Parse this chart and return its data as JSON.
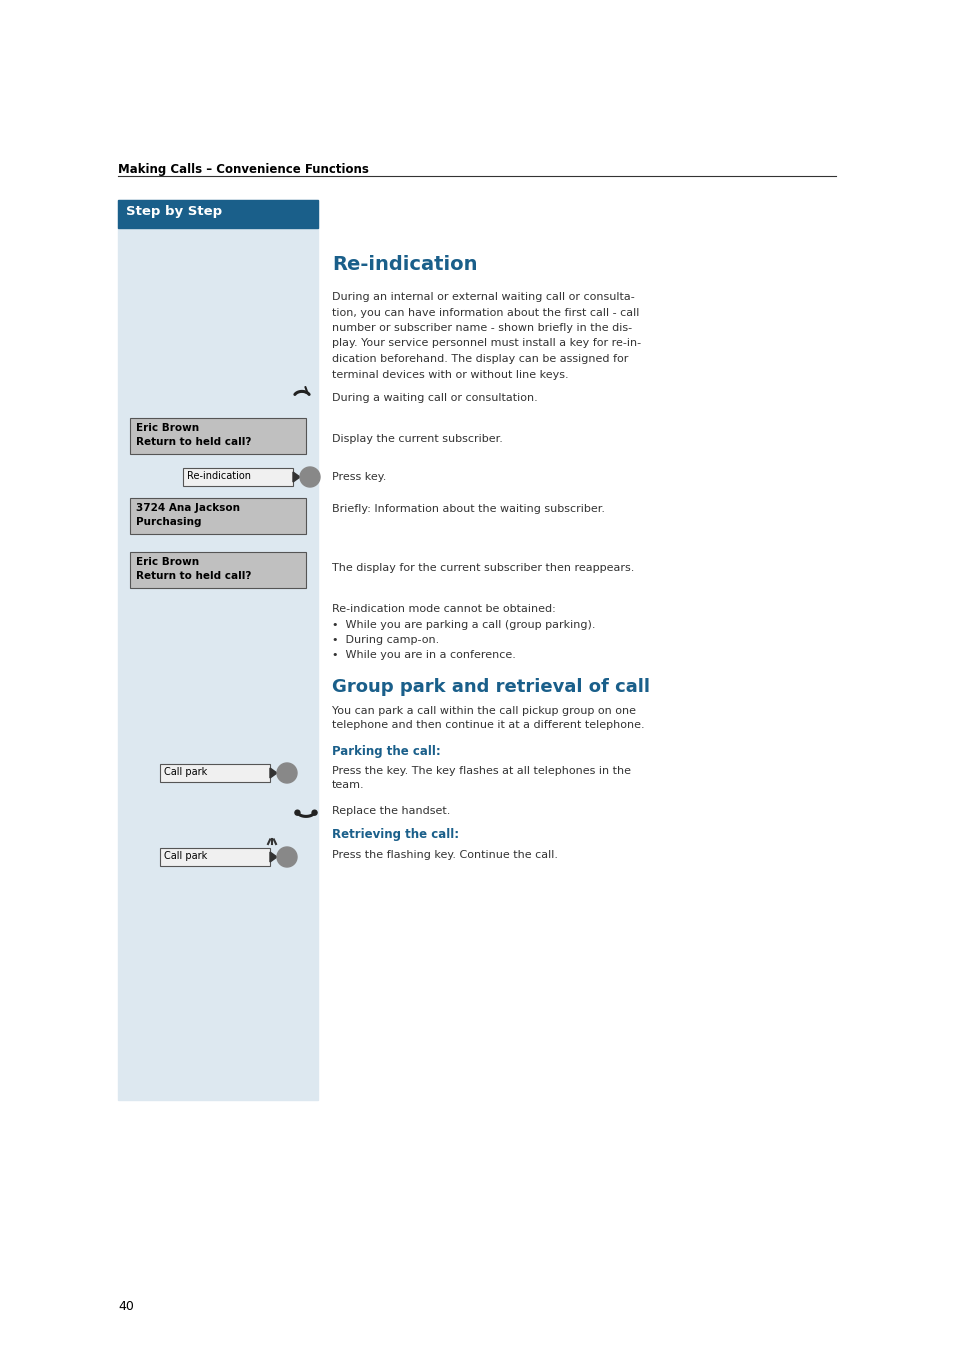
{
  "page_bg": "#ffffff",
  "left_panel_bg": "#dde8f0",
  "header_bg": "#1a5f8a",
  "header_text": "Step by Step",
  "header_text_color": "#ffffff",
  "section_title_color": "#1a5f8a",
  "header_label": "Making Calls – Convenience Functions",
  "page_number": "40",
  "re_indication_title": "Re-indication",
  "body_lines": [
    "During an internal or external waiting call or consulta-",
    "tion, you can have information about the first call - call",
    "number or subscriber name - shown briefly in the dis-",
    "play. Your service personnel must install a key for re-in-",
    "dication beforehand. The display can be assigned for",
    "terminal devices with or without line keys."
  ],
  "step1_right": "During a waiting call or consultation.",
  "display1_line1": "Eric Brown",
  "display1_line2": "Return to held call?",
  "step2_right": "Display the current subscriber.",
  "key_label1": "Re-indication",
  "step3_right": "Press key.",
  "display2_line1": "3724 Ana Jackson",
  "display2_line2": "Purchasing",
  "step4_right": "Briefly: Information about the waiting subscriber.",
  "display3_line1": "Eric Brown",
  "display3_line2": "Return to held call?",
  "step5_right": "The display for the current subscriber then reappears.",
  "note_line0": "Re-indication mode cannot be obtained:",
  "note_line1": "•  While you are parking a call (group parking).",
  "note_line2": "•  During camp-on.",
  "note_line3": "•  While you are in a conference.",
  "group_park_title": "Group park and retrieval of call",
  "group_body1": "You can park a call within the call pickup group on one",
  "group_body2": "telephone and then continue it at a different telephone.",
  "parking_title": "Parking the call:",
  "key_label2": "Call park",
  "parking_step1a": "Press the key. The key flashes at all telephones in the",
  "parking_step1b": "team.",
  "parking_step2": "Replace the handset.",
  "retrieving_title": "Retrieving the call:",
  "key_label3": "Call park",
  "retrieving_step1": "Press the flashing key. Continue the call."
}
